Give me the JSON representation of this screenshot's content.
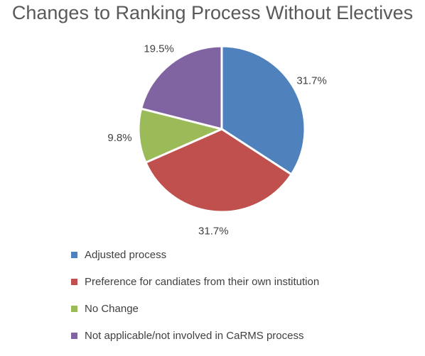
{
  "chart_data": {
    "type": "pie",
    "title": "Changes to Ranking Process Without Electives",
    "slices": [
      {
        "label": "Adjusted process",
        "value": 31.7,
        "display": "31.7%",
        "color": "#4F81BD"
      },
      {
        "label": "Preference for candiates from their own institution",
        "value": 31.7,
        "display": "31.7%",
        "color": "#C0504D"
      },
      {
        "label": "No Change",
        "value": 9.8,
        "display": "9.8%",
        "color": "#9BBB59"
      },
      {
        "label": "Not applicable/not involved in CaRMS process",
        "value": 19.5,
        "display": "19.5%",
        "color": "#8064A2"
      }
    ],
    "legend_position": "bottom"
  }
}
